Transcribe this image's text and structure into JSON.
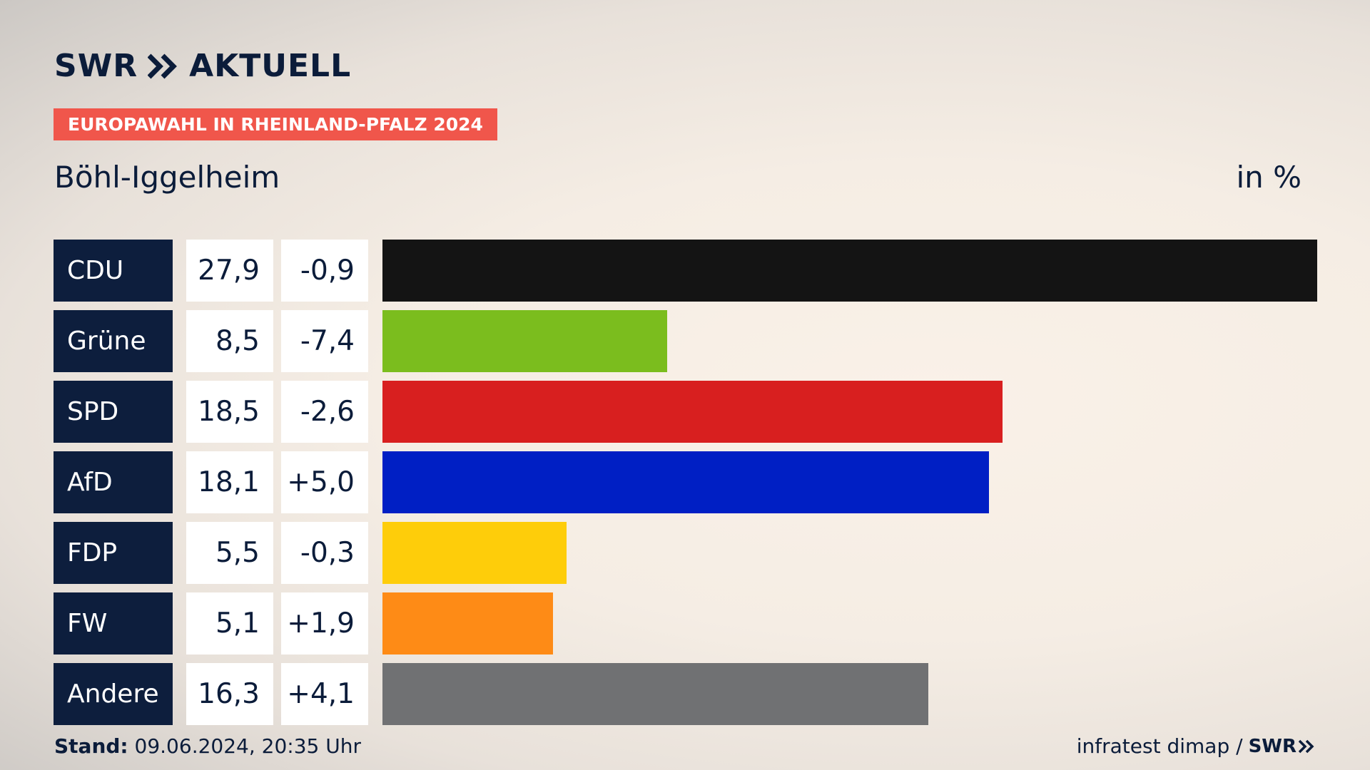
{
  "header": {
    "logo_text": "SWR",
    "logo_suffix": "AKTUELL",
    "badge": "EUROPAWAHL IN RHEINLAND-PFALZ 2024",
    "region": "Böhl-Iggelheim",
    "unit": "in %"
  },
  "chart_data": {
    "type": "bar",
    "orientation": "horizontal",
    "categories": [
      "CDU",
      "Grüne",
      "SPD",
      "AfD",
      "FDP",
      "FW",
      "Andere"
    ],
    "values": [
      27.9,
      8.5,
      18.5,
      18.1,
      5.5,
      5.1,
      16.3
    ],
    "value_labels": [
      "27,9",
      "8,5",
      "18,5",
      "18,1",
      "5,5",
      "5,1",
      "16,3"
    ],
    "diffs": [
      -0.9,
      -7.4,
      -2.6,
      5.0,
      -0.3,
      1.9,
      4.1
    ],
    "diff_labels": [
      "-0,9",
      "-7,4",
      "-2,6",
      "+5,0",
      "-0,3",
      "+1,9",
      "+4,1"
    ],
    "colors": [
      "#141414",
      "#7bbd1e",
      "#d81f1f",
      "#001fc4",
      "#fecd0a",
      "#fe8b16",
      "#707173"
    ],
    "title": "Böhl-Iggelheim",
    "unit": "in %",
    "xlim": [
      0,
      27.9
    ],
    "grid": false
  },
  "footer": {
    "stand_label": "Stand:",
    "stand_value": "09.06.2024, 20:35 Uhr",
    "source": "infratest dimap /",
    "source_logo": "SWR"
  }
}
